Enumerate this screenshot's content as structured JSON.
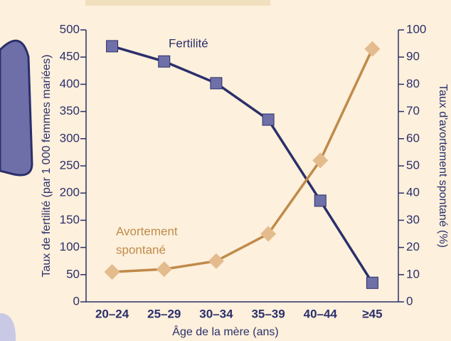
{
  "chart_data": {
    "type": "line",
    "categories": [
      "20–24",
      "25–29",
      "30–34",
      "35–39",
      "40–44",
      "≥45"
    ],
    "xlabel": "Âge de la mère (ans)",
    "ylabel": "Taux de fertilité (par 1 000 femmes mariées)",
    "y2label": "Taux d'avortement spontané (%)",
    "ylim": [
      0,
      500
    ],
    "yticks": [
      0,
      50,
      100,
      150,
      200,
      250,
      300,
      350,
      400,
      450,
      500
    ],
    "y2lim": [
      0,
      100
    ],
    "y2ticks": [
      0,
      10,
      20,
      30,
      40,
      50,
      60,
      70,
      80,
      90,
      100
    ],
    "series": [
      {
        "name": "Fertilité",
        "color": "#2b2f6b",
        "marker_color": "#6f70a8",
        "values": [
          470,
          442,
          402,
          335,
          186,
          35
        ]
      },
      {
        "name": "Avortement spontané",
        "label_lines": [
          "Avortement",
          "spontané"
        ],
        "color": "#c08a4a",
        "marker_color": "#e4bb8c",
        "axis": "y2",
        "values": [
          11,
          12,
          15,
          25,
          52,
          93
        ]
      }
    ]
  }
}
